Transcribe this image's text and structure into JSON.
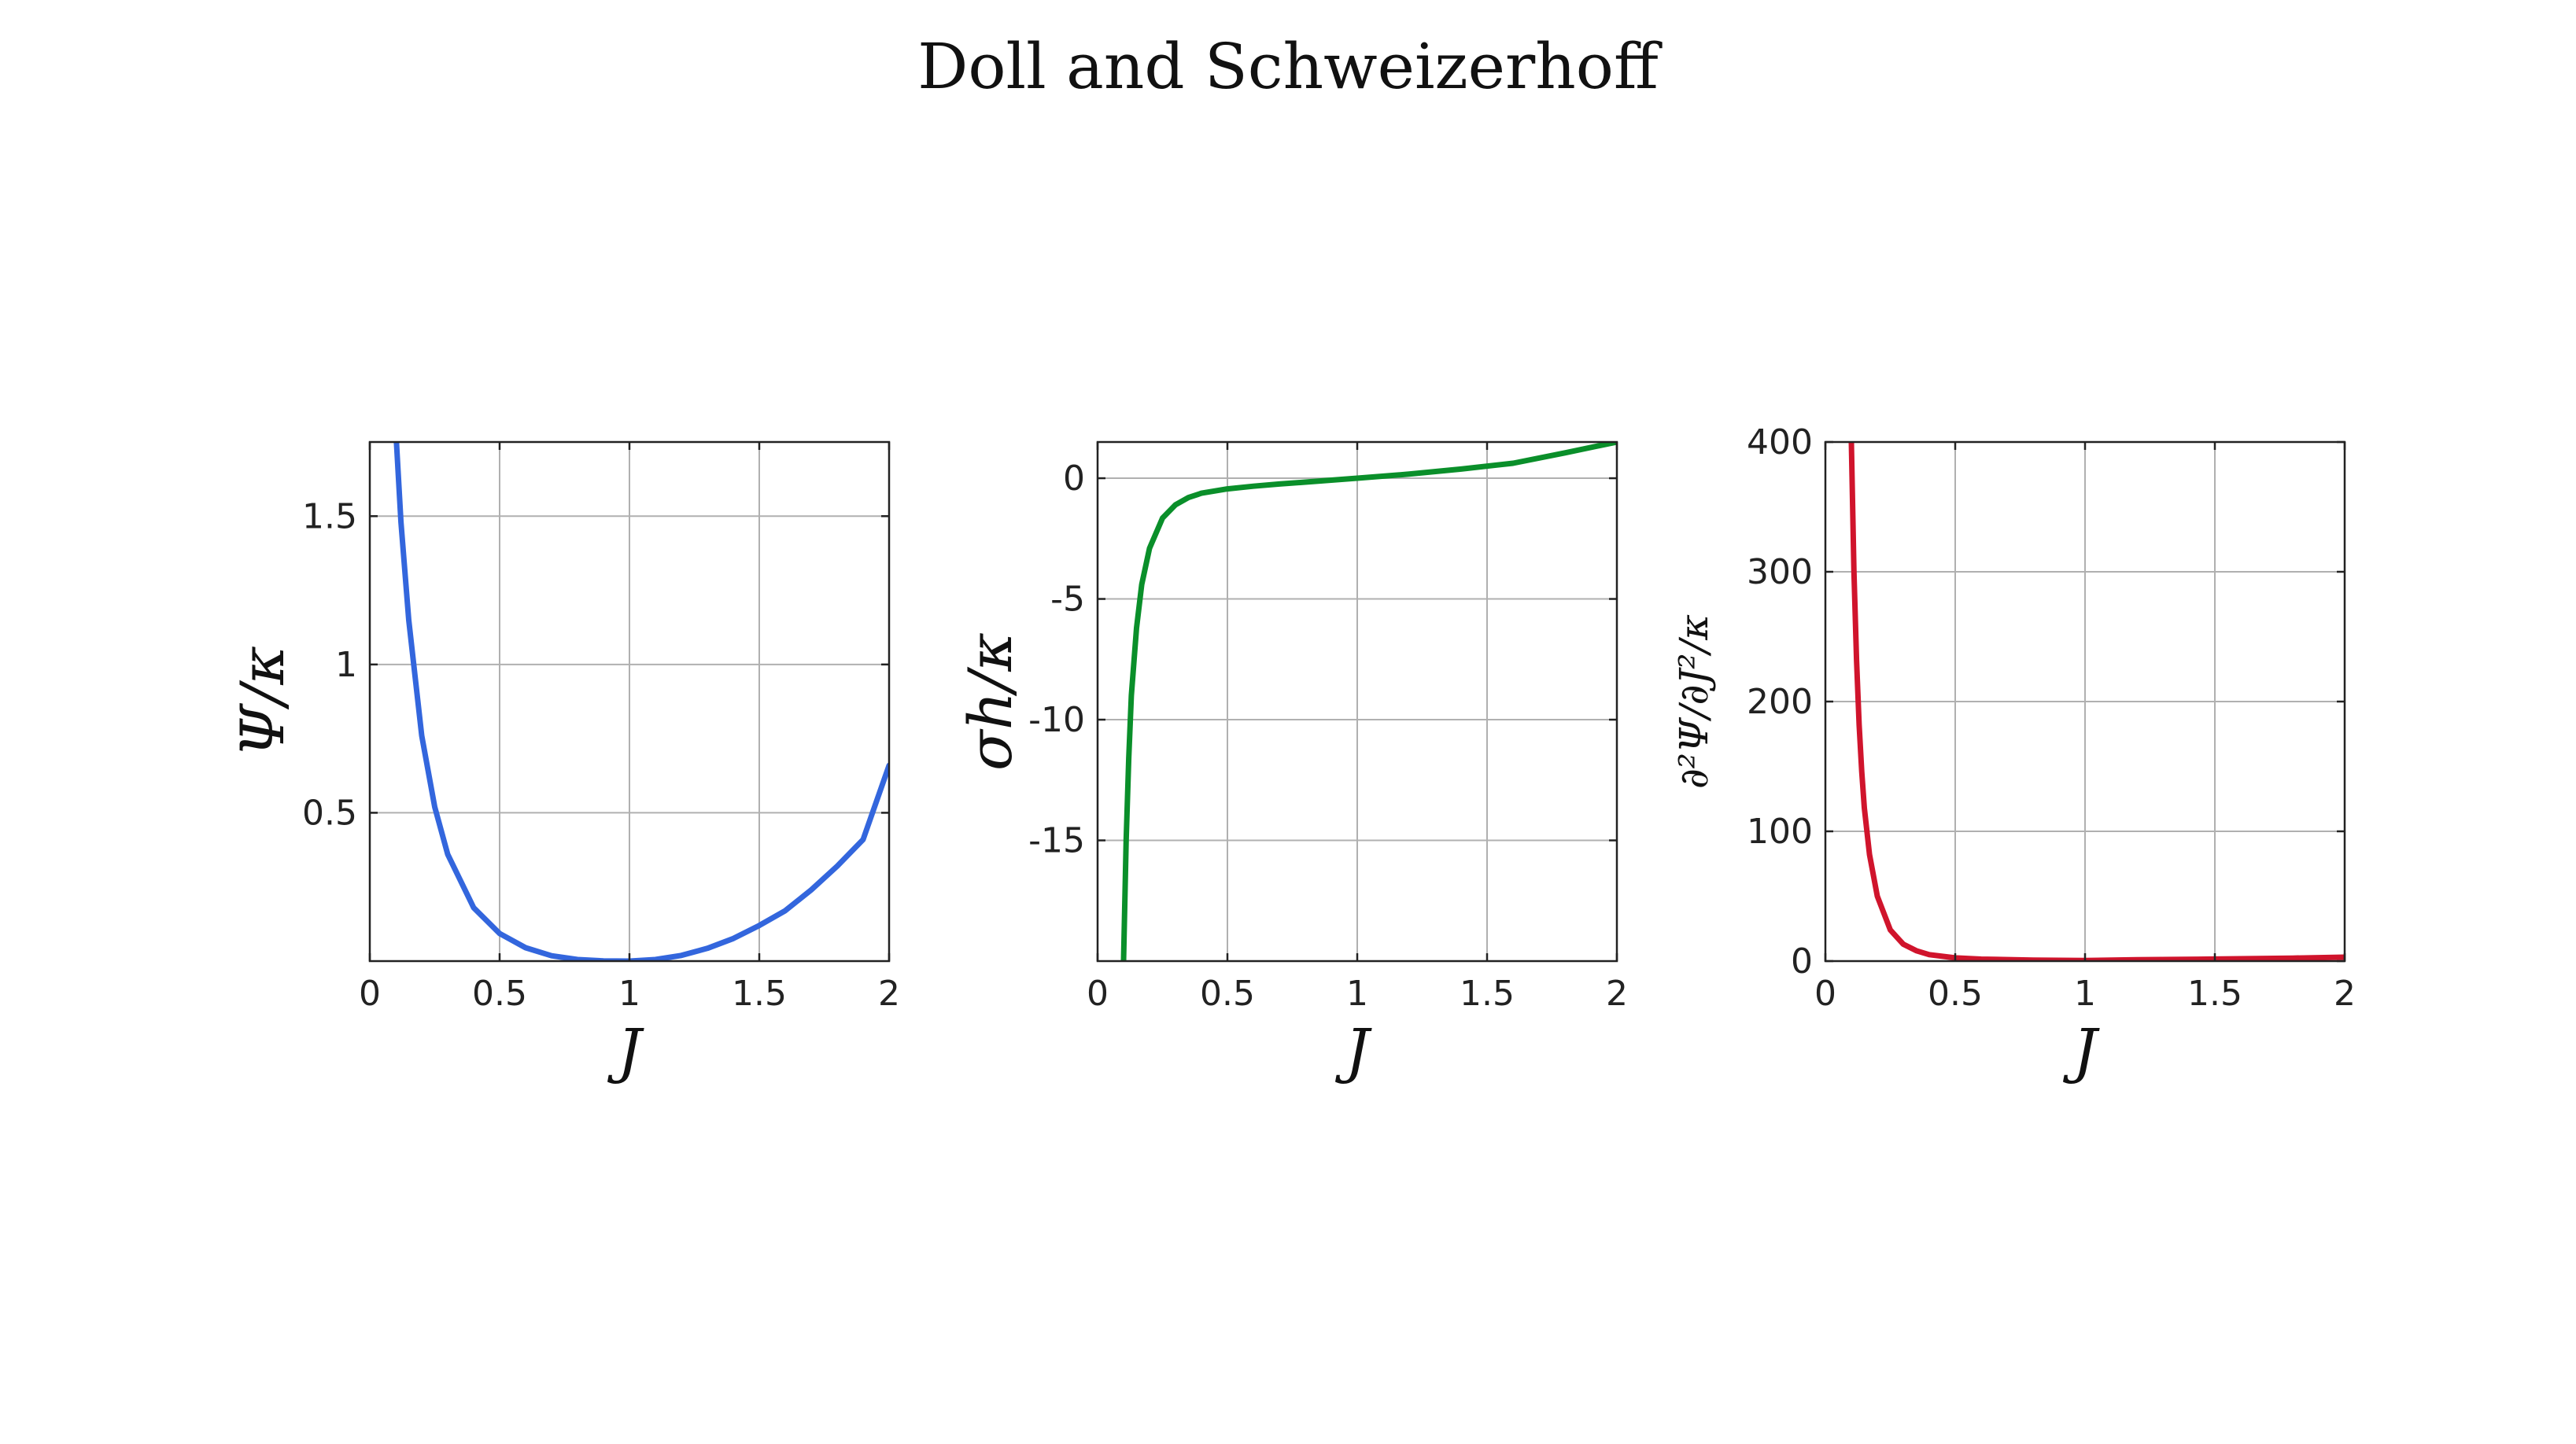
{
  "title": "Doll and Schweizerhoff",
  "chart_data": [
    {
      "type": "line",
      "xlabel": "J",
      "ylabel": "Ψ/κ",
      "xlim": [
        0,
        2
      ],
      "ylim": [
        0,
        1.75
      ],
      "xticks": [
        0,
        0.5,
        1,
        1.5,
        2
      ],
      "xtick_labels": [
        "0",
        "0.5",
        "1",
        "1.5",
        "2"
      ],
      "yticks": [
        0.5,
        1,
        1.5
      ],
      "ytick_labels": [
        "0.5",
        "1",
        "1.5"
      ],
      "grid": true,
      "color": "#3366dd",
      "series": [
        {
          "x": [
            0.1,
            0.12,
            0.15,
            0.2,
            0.25,
            0.3,
            0.4,
            0.5,
            0.6,
            0.7,
            0.8,
            0.9,
            1.0,
            1.1,
            1.2,
            1.3,
            1.4,
            1.5,
            1.6,
            1.7,
            1.8,
            1.9,
            2.0
          ],
          "y": [
            1.79,
            1.48,
            1.15,
            0.76,
            0.52,
            0.36,
            0.18,
            0.093,
            0.045,
            0.018,
            0.0052,
            0.0007,
            0.0,
            0.0052,
            0.019,
            0.043,
            0.076,
            0.12,
            0.17,
            0.24,
            0.32,
            0.41,
            0.66
          ]
        }
      ]
    },
    {
      "type": "line",
      "xlabel": "J",
      "ylabel": "σh/κ",
      "xlim": [
        0,
        2
      ],
      "ylim": [
        -20,
        1.5
      ],
      "xticks": [
        0,
        0.5,
        1,
        1.5,
        2
      ],
      "xtick_labels": [
        "0",
        "0.5",
        "1",
        "1.5",
        "2"
      ],
      "yticks": [
        -15,
        -10,
        -5,
        0
      ],
      "ytick_labels": [
        "-15",
        "-10",
        "-5",
        "0"
      ],
      "grid": true,
      "color": "#0a8f2a",
      "series": [
        {
          "x": [
            0.1,
            0.11,
            0.12,
            0.13,
            0.15,
            0.17,
            0.2,
            0.25,
            0.3,
            0.35,
            0.4,
            0.5,
            0.6,
            0.7,
            0.8,
            0.9,
            1.0,
            1.2,
            1.4,
            1.6,
            1.8,
            2.0
          ],
          "y": [
            -20,
            -15,
            -11.6,
            -9.0,
            -6.2,
            -4.4,
            -2.9,
            -1.65,
            -1.1,
            -0.8,
            -0.62,
            -0.44,
            -0.33,
            -0.24,
            -0.16,
            -0.08,
            0.0,
            0.17,
            0.38,
            0.62,
            1.05,
            1.5
          ]
        }
      ]
    },
    {
      "type": "line",
      "xlabel": "J",
      "ylabel": "∂²Ψ/∂J²/κ",
      "xlim": [
        0,
        2
      ],
      "ylim": [
        0,
        400
      ],
      "xticks": [
        0,
        0.5,
        1,
        1.5,
        2
      ],
      "xtick_labels": [
        "0",
        "0.5",
        "1",
        "1.5",
        "2"
      ],
      "yticks": [
        0,
        100,
        200,
        300,
        400
      ],
      "ytick_labels": [
        "0",
        "100",
        "200",
        "300",
        "400"
      ],
      "grid": true,
      "color": "#d0142c",
      "series": [
        {
          "x": [
            0.1,
            0.11,
            0.12,
            0.13,
            0.14,
            0.15,
            0.17,
            0.2,
            0.25,
            0.3,
            0.35,
            0.4,
            0.5,
            0.6,
            0.8,
            1.0,
            1.2,
            1.5,
            1.8,
            2.0
          ],
          "y": [
            400,
            300,
            232,
            182,
            146,
            118,
            82,
            50,
            24,
            13,
            8,
            5,
            2.5,
            1.5,
            0.8,
            0.5,
            1.0,
            1.6,
            2.3,
            3.0
          ]
        }
      ]
    }
  ]
}
